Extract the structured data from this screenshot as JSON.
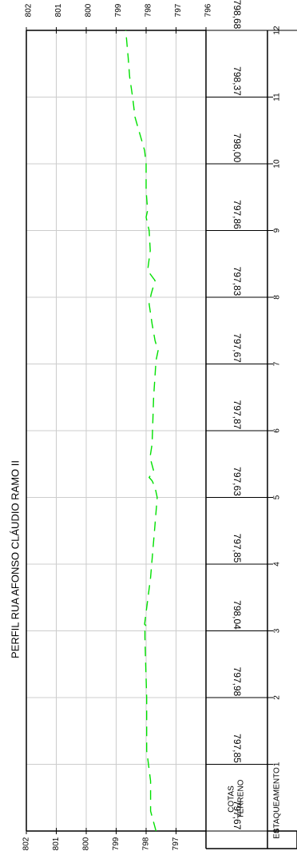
{
  "chart_data": {
    "type": "line",
    "title": "PERFIL  RUA  AFONSO  CLÁUDIO  RAMO II",
    "table_labels": {
      "cotas": [
        "COTAS",
        "TERRENO"
      ],
      "estaqueamento": "ESTAQUEAMENTO"
    },
    "y_ticks": [
      "802",
      "801",
      "800",
      "799",
      "798",
      "797",
      "796"
    ],
    "y_range": [
      796,
      802
    ],
    "x_ticks": [
      "0",
      "1",
      "2",
      "3",
      "4",
      "5",
      "6",
      "7",
      "8",
      "9",
      "10",
      "11",
      "12"
    ],
    "x_range": [
      0,
      12
    ],
    "cotas_terreno": [
      "797,67",
      "797,85",
      "797,98",
      "798,04",
      "797,85",
      "797,63",
      "797,87",
      "797,67",
      "797,83",
      "797,86",
      "798,00",
      "798,37",
      "798,68"
    ],
    "series": [
      {
        "x": [
          0,
          0.3,
          0.75,
          1.1,
          1.2,
          2.0,
          2.9,
          3.0,
          3.05,
          3.1,
          3.8,
          4.6,
          5.0,
          5.15,
          5.25,
          5.3,
          5.4,
          5.6,
          5.8,
          6.5,
          7.05,
          7.2,
          7.35,
          7.6,
          7.9,
          8.05,
          8.25,
          8.4,
          8.7,
          9.0,
          9.2,
          9.3,
          9.6,
          10.0,
          10.2,
          10.7,
          11.0,
          11.3,
          11.6,
          12.0
        ],
        "y": [
          797.67,
          797.85,
          797.85,
          797.95,
          797.98,
          797.98,
          798.04,
          798.04,
          797.95,
          798.05,
          797.85,
          797.7,
          797.63,
          797.7,
          797.8,
          797.9,
          797.75,
          797.87,
          797.8,
          797.75,
          797.67,
          797.6,
          797.7,
          797.8,
          797.9,
          797.83,
          797.7,
          797.95,
          797.86,
          797.9,
          798.0,
          797.95,
          798.0,
          798.0,
          798.05,
          798.37,
          798.45,
          798.55,
          798.6,
          798.68
        ]
      }
    ],
    "colors": {
      "terrain": "#00e000",
      "grid": "#cccccc",
      "axis": "#000000"
    }
  }
}
